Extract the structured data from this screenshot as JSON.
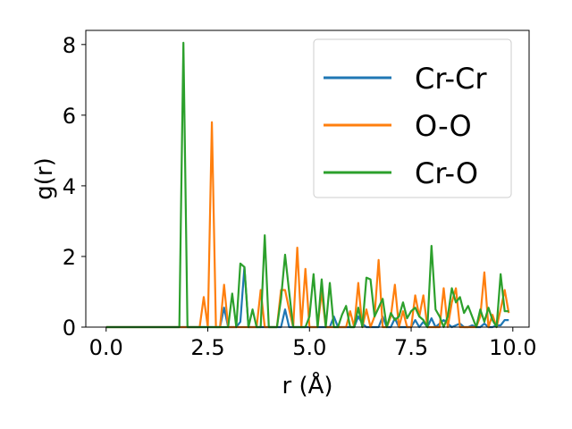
{
  "chart_data": {
    "type": "line",
    "xlabel": "r (Å)",
    "ylabel": "g(r)",
    "xlim": [
      -0.5,
      10.4
    ],
    "ylim": [
      0,
      8.4
    ],
    "xticks": [
      0.0,
      2.5,
      5.0,
      7.5,
      10.0
    ],
    "xtick_labels": [
      "0.0",
      "2.5",
      "5.0",
      "7.5",
      "10.0"
    ],
    "yticks": [
      0,
      2,
      4,
      6,
      8
    ],
    "ytick_labels": [
      "0",
      "2",
      "4",
      "6",
      "8"
    ],
    "grid": false,
    "legend_position": "top-right",
    "series": [
      {
        "name": "Cr-Cr",
        "color": "#1f77b4",
        "x": [
          0.0,
          1.0,
          2.0,
          2.8,
          2.9,
          3.0,
          3.2,
          3.3,
          3.4,
          3.5,
          3.6,
          4.3,
          4.4,
          4.5,
          4.6,
          5.5,
          5.6,
          5.7,
          5.8,
          6.0,
          6.1,
          6.2,
          6.3,
          6.4,
          6.5,
          6.6,
          6.7,
          6.8,
          6.9,
          7.0,
          7.1,
          7.2,
          7.3,
          7.4,
          7.5,
          7.6,
          7.7,
          7.8,
          7.9,
          8.0,
          8.1,
          8.2,
          8.3,
          8.4,
          8.5,
          8.6,
          8.7,
          8.8,
          8.9,
          9.0,
          9.1,
          9.2,
          9.3,
          9.4,
          9.5,
          9.6,
          9.7,
          9.8,
          9.9
        ],
        "y": [
          0,
          0,
          0,
          0,
          0.55,
          0,
          0,
          0.15,
          1.7,
          0,
          0,
          0,
          0.5,
          0,
          0,
          0,
          0.3,
          0,
          0,
          0,
          0,
          0.3,
          0.1,
          0,
          0,
          0,
          0,
          0.3,
          0,
          0,
          0.25,
          0,
          0,
          0,
          0,
          0.2,
          0,
          0.15,
          0,
          0.25,
          0,
          0.1,
          0.2,
          0.1,
          0,
          0.05,
          0.1,
          0,
          0,
          0.05,
          0,
          0,
          0.1,
          0,
          0,
          0.05,
          0.05,
          0.2,
          0.2
        ]
      },
      {
        "name": "O-O",
        "color": "#ff7f0e",
        "x": [
          0.0,
          1.0,
          2.0,
          2.1,
          2.2,
          2.3,
          2.4,
          2.5,
          2.6,
          2.7,
          2.8,
          2.9,
          3.0,
          3.1,
          3.2,
          3.3,
          3.4,
          3.5,
          3.6,
          3.7,
          3.8,
          3.9,
          4.0,
          4.1,
          4.2,
          4.3,
          4.4,
          4.5,
          4.6,
          4.7,
          4.8,
          4.9,
          5.0,
          5.1,
          5.2,
          5.3,
          5.4,
          5.5,
          5.6,
          5.7,
          5.8,
          5.9,
          6.0,
          6.1,
          6.2,
          6.3,
          6.4,
          6.5,
          6.6,
          6.7,
          6.8,
          6.9,
          7.0,
          7.1,
          7.2,
          7.3,
          7.4,
          7.5,
          7.6,
          7.7,
          7.8,
          7.9,
          8.0,
          8.1,
          8.2,
          8.3,
          8.4,
          8.5,
          8.6,
          8.7,
          8.8,
          8.9,
          9.0,
          9.1,
          9.2,
          9.3,
          9.4,
          9.5,
          9.6,
          9.7,
          9.8,
          9.9
        ],
        "y": [
          0,
          0,
          0,
          0,
          0,
          0,
          0.85,
          0,
          5.8,
          0,
          0,
          1.2,
          0,
          0,
          0,
          0,
          0,
          0,
          0,
          0,
          1.05,
          0,
          0,
          0,
          0,
          1.05,
          1.05,
          0.5,
          0,
          2.25,
          0,
          1.65,
          0,
          0,
          0,
          1.0,
          0,
          0,
          0,
          0,
          0,
          0,
          0.45,
          0,
          1.25,
          0,
          0.5,
          0,
          0.3,
          1.9,
          0,
          0,
          0.3,
          1.2,
          0,
          0.45,
          0,
          0,
          0.9,
          0.3,
          0.9,
          0,
          0,
          0,
          0,
          1.1,
          0,
          0.7,
          1.1,
          0,
          0,
          0,
          0,
          0,
          0.3,
          1.55,
          0,
          0.35,
          0,
          0.5,
          1.05,
          0.4
        ]
      },
      {
        "name": "Cr-O",
        "color": "#2ca02c",
        "x": [
          0.0,
          1.0,
          1.8,
          1.9,
          2.0,
          2.1,
          2.2,
          2.3,
          2.4,
          2.5,
          2.6,
          2.7,
          2.8,
          2.9,
          3.0,
          3.1,
          3.2,
          3.3,
          3.4,
          3.5,
          3.6,
          3.7,
          3.8,
          3.9,
          4.0,
          4.1,
          4.2,
          4.3,
          4.4,
          4.5,
          4.6,
          4.7,
          4.8,
          4.9,
          5.0,
          5.1,
          5.2,
          5.3,
          5.4,
          5.5,
          5.6,
          5.7,
          5.8,
          5.9,
          6.0,
          6.1,
          6.2,
          6.3,
          6.4,
          6.5,
          6.6,
          6.7,
          6.8,
          6.9,
          7.0,
          7.1,
          7.2,
          7.3,
          7.4,
          7.5,
          7.6,
          7.7,
          7.8,
          7.9,
          8.0,
          8.1,
          8.2,
          8.3,
          8.4,
          8.5,
          8.6,
          8.7,
          8.8,
          8.9,
          9.0,
          9.1,
          9.2,
          9.3,
          9.4,
          9.5,
          9.6,
          9.7,
          9.8,
          9.9
        ],
        "y": [
          0,
          0,
          0,
          8.05,
          0,
          0,
          0,
          0,
          0,
          0,
          0,
          0,
          0,
          0,
          0,
          0.95,
          0,
          1.8,
          1.7,
          0,
          0.5,
          0,
          0,
          2.6,
          0,
          0,
          0,
          0.8,
          2.05,
          1.0,
          0,
          0,
          0,
          0,
          0.3,
          1.5,
          0,
          1.35,
          0,
          1.25,
          0,
          0,
          0.35,
          0.6,
          0,
          0,
          0.55,
          0,
          1.4,
          1.35,
          0.3,
          0.55,
          0.8,
          0,
          0.4,
          0.2,
          0.3,
          0.7,
          0.25,
          0.45,
          0.55,
          0.3,
          0.2,
          0,
          2.3,
          0.5,
          0.3,
          0,
          0.3,
          1.1,
          0.7,
          0.85,
          0.4,
          0.6,
          0.3,
          0,
          0.5,
          0.15,
          0.55,
          0.2,
          0,
          1.5,
          0.45,
          0.45
        ]
      }
    ]
  }
}
